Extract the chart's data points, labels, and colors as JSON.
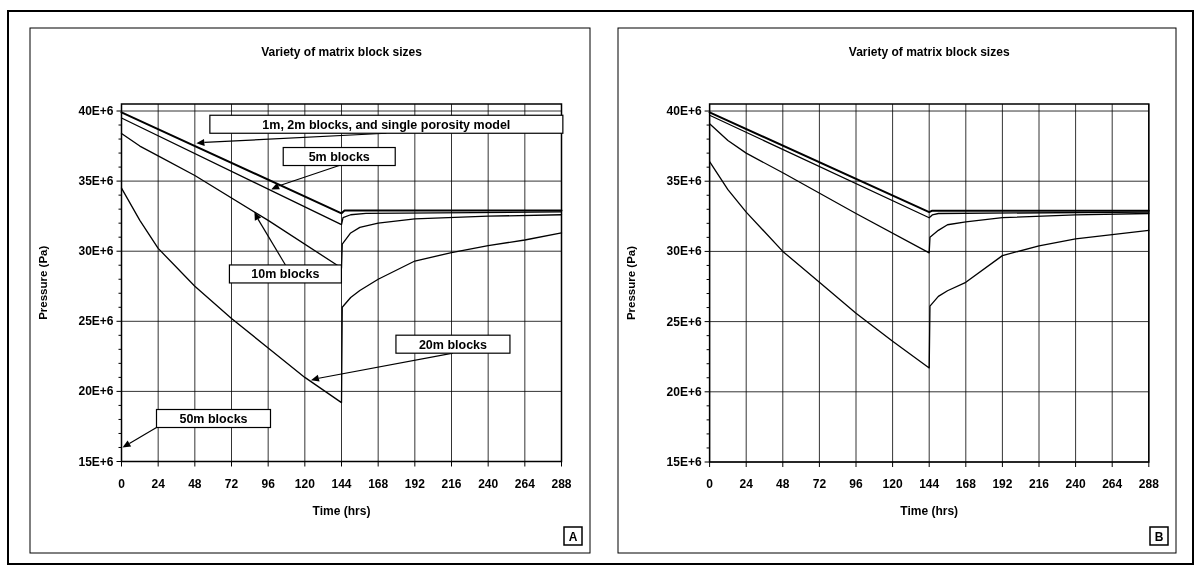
{
  "chart_data": [
    {
      "type": "line",
      "title": "Variety of matrix block sizes",
      "xlabel": "Time (hrs)",
      "ylabel": "Pressure (Pa)",
      "xlim": [
        0,
        288
      ],
      "ylim": [
        15000000,
        40500000
      ],
      "xticks": [
        0,
        24,
        48,
        72,
        96,
        120,
        144,
        168,
        192,
        216,
        240,
        264,
        288
      ],
      "yticks": [
        {
          "value": 15000000,
          "label": "15E+6"
        },
        {
          "value": 16000000,
          "label": null
        },
        {
          "value": 17000000,
          "label": null
        },
        {
          "value": 18000000,
          "label": null
        },
        {
          "value": 19000000,
          "label": null
        },
        {
          "value": 20000000,
          "label": "20E+6"
        },
        {
          "value": 21000000,
          "label": null
        },
        {
          "value": 22000000,
          "label": null
        },
        {
          "value": 23000000,
          "label": null
        },
        {
          "value": 24000000,
          "label": null
        },
        {
          "value": 25000000,
          "label": "25E+6"
        },
        {
          "value": 26000000,
          "label": null
        },
        {
          "value": 27000000,
          "label": null
        },
        {
          "value": 28000000,
          "label": null
        },
        {
          "value": 29000000,
          "label": null
        },
        {
          "value": 30000000,
          "label": "30E+6"
        },
        {
          "value": 31000000,
          "label": null
        },
        {
          "value": 32000000,
          "label": null
        },
        {
          "value": 33000000,
          "label": null
        },
        {
          "value": 34000000,
          "label": null
        },
        {
          "value": 35000000,
          "label": "35E+6"
        },
        {
          "value": 36000000,
          "label": null
        },
        {
          "value": 37000000,
          "label": null
        },
        {
          "value": 38000000,
          "label": null
        },
        {
          "value": 39000000,
          "label": null
        },
        {
          "value": 40000000,
          "label": "40E+6"
        }
      ],
      "grid": true,
      "line_style": "solid",
      "marker": "none",
      "series": [
        {
          "color": "#000000",
          "x": [
            0,
            144,
            146,
            288
          ],
          "values": [
            39900000,
            32700000,
            32900000,
            32900000
          ]
        },
        {
          "color": "#000000",
          "x": [
            0,
            144,
            145,
            150,
            160,
            288
          ],
          "values": [
            39500000,
            31900000,
            32400000,
            32600000,
            32700000,
            32800000
          ]
        },
        {
          "color": "#000000",
          "x": [
            0,
            12,
            24,
            48,
            96,
            144,
            144.5,
            150,
            156,
            168,
            192,
            240,
            288
          ],
          "values": [
            38400000,
            37500000,
            36800000,
            35400000,
            32200000,
            28800000,
            30500000,
            31300000,
            31700000,
            32000000,
            32300000,
            32500000,
            32600000
          ]
        },
        {
          "color": "#000000",
          "x": [
            0,
            12,
            24,
            48,
            72,
            96,
            120,
            144,
            144.5,
            150,
            156,
            168,
            192,
            216,
            240,
            264,
            288
          ],
          "values": [
            34500000,
            32200000,
            30200000,
            27500000,
            25200000,
            23100000,
            21000000,
            19200000,
            26000000,
            26700000,
            27200000,
            28000000,
            29300000,
            29900000,
            30400000,
            30800000,
            31300000
          ]
        }
      ],
      "annotations": [
        {
          "text": "1m, 2m blocks, and single porosity model",
          "x": 49,
          "y": 37700000
        },
        {
          "text": "5m blocks",
          "x": 98,
          "y": 34400000
        },
        {
          "text": "10m blocks",
          "x": 87,
          "y": 32800000
        },
        {
          "text": "20m blocks",
          "x": 124,
          "y": 20800000
        },
        "50m blocks",
        "A"
      ]
    },
    {
      "type": "line",
      "title": "Variety of matrix block sizes",
      "xlabel": "Time (hrs)",
      "ylabel": "Pressure (Pa)",
      "xlim": [
        0,
        288
      ],
      "ylim": [
        15000000,
        40500000
      ],
      "xticks": [
        0,
        24,
        48,
        72,
        96,
        120,
        144,
        168,
        192,
        216,
        240,
        264,
        288
      ],
      "yticks": [
        {
          "value": 15000000,
          "label": "15E+6"
        },
        {
          "value": 16000000,
          "label": null
        },
        {
          "value": 17000000,
          "label": null
        },
        {
          "value": 18000000,
          "label": null
        },
        {
          "value": 19000000,
          "label": null
        },
        {
          "value": 20000000,
          "label": "20E+6"
        },
        {
          "value": 21000000,
          "label": null
        },
        {
          "value": 22000000,
          "label": null
        },
        {
          "value": 23000000,
          "label": null
        },
        {
          "value": 24000000,
          "label": null
        },
        {
          "value": 25000000,
          "label": "25E+6"
        },
        {
          "value": 26000000,
          "label": null
        },
        {
          "value": 27000000,
          "label": null
        },
        {
          "value": 28000000,
          "label": null
        },
        {
          "value": 29000000,
          "label": null
        },
        {
          "value": 30000000,
          "label": "30E+6"
        },
        {
          "value": 31000000,
          "label": null
        },
        {
          "value": 32000000,
          "label": null
        },
        {
          "value": 33000000,
          "label": null
        },
        {
          "value": 34000000,
          "label": null
        },
        {
          "value": 35000000,
          "label": "35E+6"
        },
        {
          "value": 36000000,
          "label": null
        },
        {
          "value": 37000000,
          "label": null
        },
        {
          "value": 38000000,
          "label": null
        },
        {
          "value": 39000000,
          "label": null
        },
        {
          "value": 40000000,
          "label": "40E+6"
        }
      ],
      "grid": true,
      "line_style": "solid",
      "marker": "none",
      "series": [
        {
          "color": "#000000",
          "x": [
            0,
            144,
            146,
            288
          ],
          "values": [
            39900000,
            32800000,
            32900000,
            32900000
          ]
        },
        {
          "color": "#000000",
          "x": [
            0,
            144,
            146,
            150,
            288
          ],
          "values": [
            39700000,
            32400000,
            32600000,
            32700000,
            32800000
          ]
        },
        {
          "color": "#000000",
          "x": [
            0,
            12,
            24,
            48,
            96,
            144,
            144.5,
            150,
            156,
            168,
            192,
            240,
            288
          ],
          "values": [
            39100000,
            37900000,
            37000000,
            35600000,
            32700000,
            29900000,
            31000000,
            31500000,
            31900000,
            32100000,
            32400000,
            32600000,
            32700000
          ]
        },
        {
          "color": "#000000",
          "x": [
            0,
            12,
            24,
            48,
            72,
            96,
            120,
            144,
            144.5,
            150,
            156,
            168,
            192,
            216,
            240,
            264,
            288
          ],
          "values": [
            36400000,
            34400000,
            32800000,
            30000000,
            27800000,
            25600000,
            23600000,
            21700000,
            26100000,
            26800000,
            27200000,
            27800000,
            29700000,
            30400000,
            30900000,
            31200000,
            31500000
          ]
        }
      ],
      "annotations": [
        "B"
      ]
    }
  ]
}
